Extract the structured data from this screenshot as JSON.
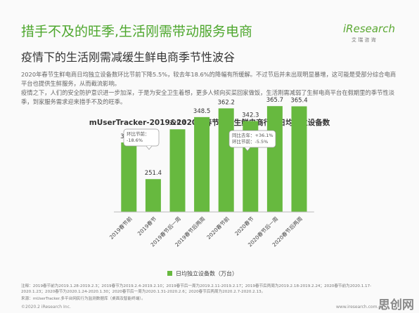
{
  "header": {
    "title": "措手不及的旺季,生活刚需带动服务电商",
    "logo": "iResearch",
    "logo_sub": "艾 瑞 咨 询",
    "subtitle": "疫情下的生活刚需减缓生鲜电商季节性波谷"
  },
  "body": {
    "paragraphs": [
      "2020年春节生鲜电商日均独立设备数环比节前下降5.5%，较去年18.6%的降幅有所缓解。不过节后并未出现明显暴增，这可能是受部分综合电商平台也提供生鲜服务，从而截流影响。",
      "疫情之下，人们的安全防护意识进一步加深，于是为安全卫生着想，更多人倾向买菜回家做饭，生活刚需减弱了生鲜电商平台在假期里的季节性淡季，到家服务需求迎来措手不及的旺季。"
    ]
  },
  "chart_data": {
    "type": "bar",
    "title": "mUserTracker-2019&2020年春节前后生鲜电商行业日均独立设备数",
    "categories": [
      "2019春节前",
      "2019春节",
      "2019春节后一周",
      "2019春节后两周",
      "2020春节前",
      "2020春节",
      "2020春节后一周",
      "2020春节后两周"
    ],
    "series": [
      {
        "name": "日均独立设备数（万台）",
        "color": "#67b93f",
        "values": [
          308.8,
          251.4,
          329.4,
          348.5,
          362.2,
          342.3,
          365.7,
          365.4
        ]
      }
    ],
    "ylim": [
      200,
      400
    ],
    "annotations": [
      [
        "环比节前：",
        "-18.6%"
      ],
      [
        "同比去年：+36.1%",
        "环比节前：-5.5%"
      ]
    ]
  },
  "footer": {
    "note": "注释：2019春节前为2019.1.28-2019.2.3；2019春节为2019.2.4-2019.2.10；2019春节后一周为2019.2.11-2019.2.17；2019春节后两周为2019.2.18-2019.2.24；2020春节前为2020.1.17-2020.1.23；2020春节为2020.1.24-2020.1.30；2020春节后一周为2020.1.31-2020.2.6；2020春节后两周为2020.2.7-2020.2.13。",
    "source": "来源：mUserTracker.多平台网民行为监测数据库（桌面及智能终端）。",
    "copyright": "©2020.2 iResearch Inc.",
    "website": "www.iresearch.com.cn",
    "watermark": "思创网"
  }
}
